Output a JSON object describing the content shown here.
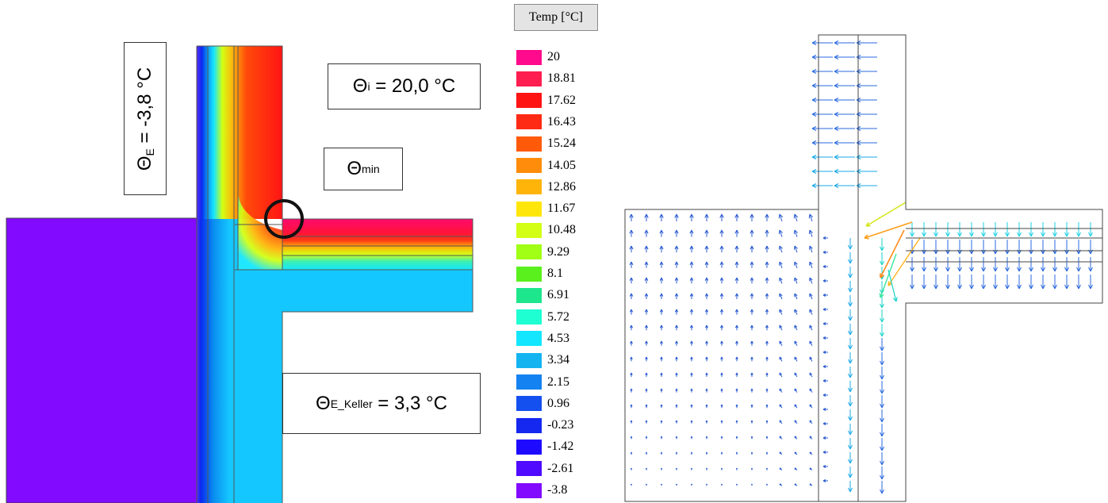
{
  "annotations": {
    "theta_e": {
      "symbol": "Θ",
      "sub": "E",
      "value": " = -3,8 °C"
    },
    "theta_i": {
      "symbol": "Θ",
      "sub": "i",
      "value": " = 20,0 °C"
    },
    "theta_min": {
      "symbol": "Θ",
      "sub": "min"
    },
    "theta_keller": {
      "symbol": "Θ",
      "sub": "E_Keller",
      "value": " = 3,3 °C"
    }
  },
  "legend": {
    "title": "Temp [°C]",
    "items": [
      {
        "label": "20",
        "color": "#ff0a8c"
      },
      {
        "label": "18.81",
        "color": "#ff1e50"
      },
      {
        "label": "17.62",
        "color": "#ff1414"
      },
      {
        "label": "16.43",
        "color": "#ff2a14"
      },
      {
        "label": "15.24",
        "color": "#ff5a0a"
      },
      {
        "label": "14.05",
        "color": "#ff8c0a"
      },
      {
        "label": "12.86",
        "color": "#ffb40a"
      },
      {
        "label": "11.67",
        "color": "#ffe60a"
      },
      {
        "label": "10.48",
        "color": "#d2ff14"
      },
      {
        "label": "9.29",
        "color": "#a0ff14"
      },
      {
        "label": "8.1",
        "color": "#5af01e"
      },
      {
        "label": "6.91",
        "color": "#1ee68c"
      },
      {
        "label": "5.72",
        "color": "#1effd2"
      },
      {
        "label": "4.53",
        "color": "#14e6ff"
      },
      {
        "label": "3.34",
        "color": "#14b4f0"
      },
      {
        "label": "2.15",
        "color": "#1482f0"
      },
      {
        "label": "0.96",
        "color": "#1450f0"
      },
      {
        "label": "-0.23",
        "color": "#1428f0"
      },
      {
        "label": "-1.42",
        "color": "#1e0aff"
      },
      {
        "label": "-2.61",
        "color": "#500aff"
      },
      {
        "label": "-3.8",
        "color": "#820aff"
      }
    ]
  }
}
